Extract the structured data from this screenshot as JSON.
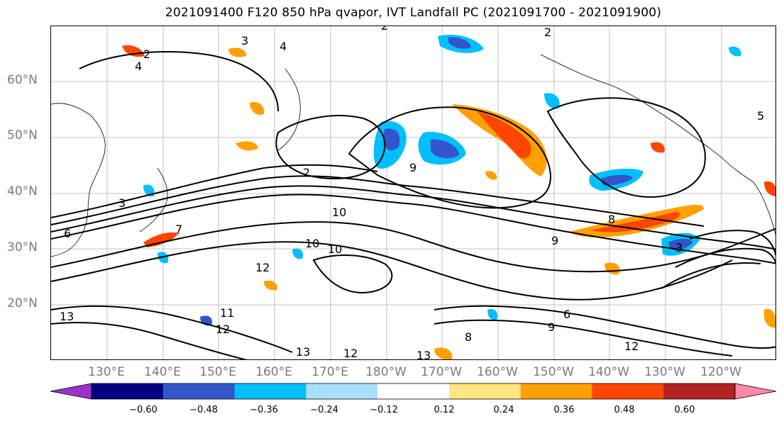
{
  "title": "2021091400 F120 850 hPa qvapor, IVT Landfall PC (2021091700 - 2021091900)",
  "map": {
    "lat_labels": [
      "60°N",
      "50°N",
      "40°N",
      "30°N",
      "20°N"
    ],
    "lon_labels": [
      "130°E",
      "140°E",
      "150°E",
      "160°E",
      "170°E",
      "180°W",
      "170°W",
      "160°W",
      "150°W",
      "140°W",
      "130°W",
      "120°W"
    ],
    "contour_labels": [
      "2",
      "3",
      "4",
      "4",
      "2",
      "3",
      "6",
      "9",
      "10",
      "10",
      "12",
      "11",
      "12",
      "13",
      "12",
      "13",
      "2",
      "9",
      "8",
      "3",
      "7",
      "6",
      "12",
      "13",
      "8",
      "5",
      "2",
      "9",
      "10"
    ]
  },
  "colorbar": {
    "colors": [
      "#9933cc",
      "#000080",
      "#3355cc",
      "#00bfff",
      "#aae0ff",
      "#ffffff",
      "#ffe680",
      "#ffa000",
      "#ff4500",
      "#b22222",
      "#ff88aa"
    ],
    "ticks": [
      "−0.60",
      "−0.48",
      "−0.36",
      "−0.24",
      "−0.12",
      "0.12",
      "0.24",
      "0.36",
      "0.48",
      "0.60"
    ]
  }
}
